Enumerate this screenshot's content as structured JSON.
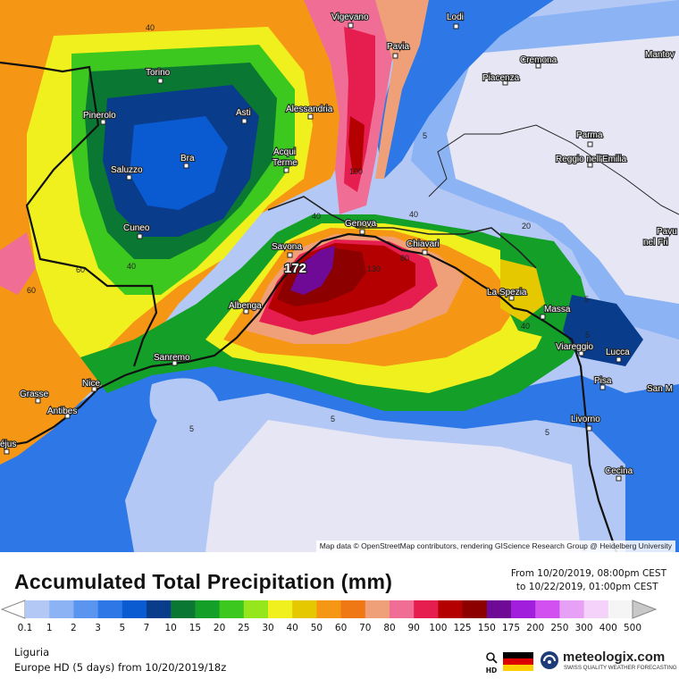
{
  "map": {
    "attribution": "Map data © OpenStreetMap contributors, rendering GIScience Research Group @ Heidelberg University",
    "cities": [
      {
        "name": "Vigevano"
      },
      {
        "name": "Lodi"
      },
      {
        "name": "Torino"
      },
      {
        "name": "Pavia"
      },
      {
        "name": "Cremona"
      },
      {
        "name": "Mantov"
      },
      {
        "name": "Piacenza"
      },
      {
        "name": "Pinerolo"
      },
      {
        "name": "Asti"
      },
      {
        "name": "Alessandria"
      },
      {
        "name": "Parma"
      },
      {
        "name": "Bra"
      },
      {
        "name": "Acqui"
      },
      {
        "name": "Terme"
      },
      {
        "name": "Saluzzo"
      },
      {
        "name": "Reggio nell'Emilia"
      },
      {
        "name": "Cuneo"
      },
      {
        "name": "Genova"
      },
      {
        "name": "Savona"
      },
      {
        "name": "Chiavari"
      },
      {
        "name": "Pavu"
      },
      {
        "name": "nel Fri"
      },
      {
        "name": "La Spezia"
      },
      {
        "name": "Albenga"
      },
      {
        "name": "Massa"
      },
      {
        "name": "Sanremo"
      },
      {
        "name": "Viareggio"
      },
      {
        "name": "Lucca"
      },
      {
        "name": "Nice"
      },
      {
        "name": "Pisa"
      },
      {
        "name": "San M"
      },
      {
        "name": "Grasse"
      },
      {
        "name": "Antibes"
      },
      {
        "name": "Livorno"
      },
      {
        "name": "éjus"
      },
      {
        "name": "Cecina"
      }
    ],
    "contour_labels": [
      "40",
      "40",
      "60",
      "40",
      "60",
      "100",
      "40",
      "130",
      "80",
      "20",
      "40",
      "5",
      "5",
      "5",
      "5",
      "5",
      "5"
    ],
    "max_label": "172"
  },
  "legend": {
    "title": "Accumulated Total Precipitation (mm)",
    "date_from": "From 10/20/2019, 08:00pm CEST",
    "date_to": "to 10/22/2019, 01:00pm CEST",
    "ticks": [
      "0.1",
      "1",
      "2",
      "3",
      "5",
      "7",
      "10",
      "15",
      "20",
      "25",
      "30",
      "40",
      "50",
      "60",
      "70",
      "80",
      "90",
      "100",
      "125",
      "150",
      "175",
      "200",
      "250",
      "300",
      "400",
      "500"
    ],
    "colors": [
      "#e6e6f5",
      "#b4c8f5",
      "#8cb4f5",
      "#5a96f0",
      "#2d78e6",
      "#0a5ad2",
      "#0a3c8c",
      "#0a7832",
      "#14a028",
      "#3cc81e",
      "#96e61e",
      "#f0f01e",
      "#e6c800",
      "#f59614",
      "#f07814",
      "#f0a078",
      "#f06e96",
      "#e61e50",
      "#b40000",
      "#8c0000",
      "#6e0a96",
      "#a01edc",
      "#d250f0",
      "#e6a0f5",
      "#f5d2fa",
      "#f5f5f5",
      "#c8c8c8"
    ],
    "region": "Liguria",
    "model_info": "Europe HD (5 days) from 10/20/2019/18z",
    "hd_label": "HD",
    "brand_name": "meteologix.com",
    "brand_tagline": "SWISS QUALITY WEATHER FORECASTING"
  }
}
